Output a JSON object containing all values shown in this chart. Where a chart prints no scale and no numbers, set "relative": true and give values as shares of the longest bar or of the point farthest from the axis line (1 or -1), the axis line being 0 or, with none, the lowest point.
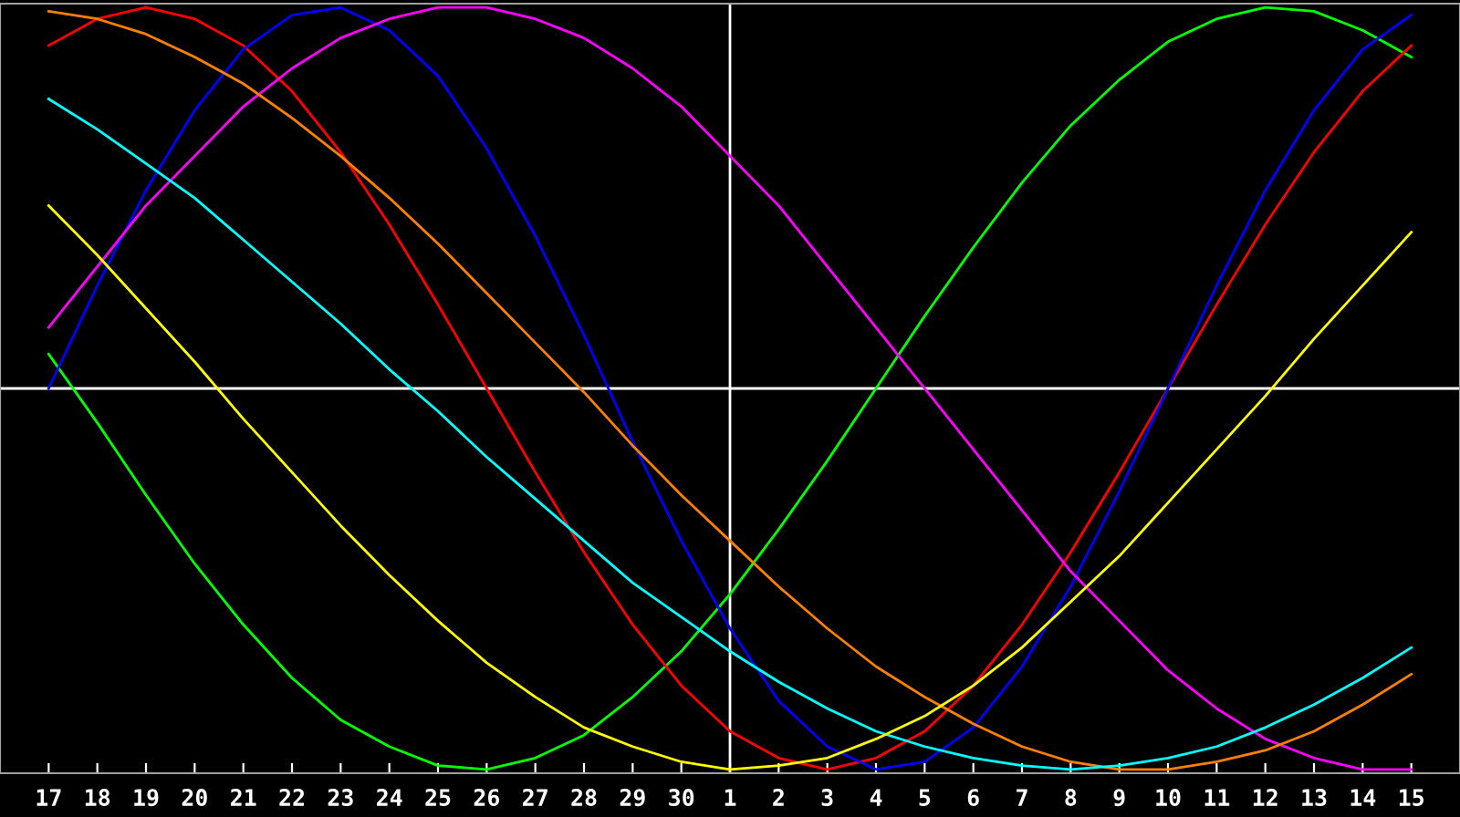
{
  "chart_data": {
    "type": "line",
    "relative": true,
    "tick_labels": "x",
    "grid": false,
    "legend": false,
    "marker": "none",
    "line_style": "solid",
    "categories": [
      "17",
      "18",
      "19",
      "20",
      "21",
      "22",
      "23",
      "24",
      "25",
      "26",
      "27",
      "28",
      "29",
      "30",
      "1",
      "2",
      "3",
      "4",
      "5",
      "6",
      "7",
      "8",
      "9",
      "10",
      "11",
      "12",
      "13",
      "14",
      "15"
    ],
    "series": [
      {
        "color": "#00ff00",
        "values": [
          0.09,
          -0.09,
          -0.28,
          -0.46,
          -0.62,
          -0.76,
          -0.87,
          -0.94,
          -0.99,
          -1.0,
          -0.97,
          -0.91,
          -0.81,
          -0.69,
          -0.54,
          -0.37,
          -0.19,
          0,
          0.19,
          0.37,
          0.54,
          0.69,
          0.81,
          0.91,
          0.97,
          1.0,
          0.99,
          0.94,
          0.87
        ]
      },
      {
        "color": "#ff0000",
        "values": [
          0.9,
          0.97,
          1.0,
          0.97,
          0.9,
          0.78,
          0.62,
          0.43,
          0.22,
          0,
          -0.22,
          -0.43,
          -0.62,
          -0.78,
          -0.9,
          -0.97,
          -1.0,
          -0.97,
          -0.9,
          -0.78,
          -0.62,
          -0.43,
          -0.22,
          0,
          0.22,
          0.43,
          0.62,
          0.78,
          0.9
        ]
      },
      {
        "color": "#0000ff",
        "values": [
          0,
          0.27,
          0.52,
          0.73,
          0.89,
          0.98,
          1.0,
          0.94,
          0.82,
          0.63,
          0.4,
          0.14,
          -0.14,
          -0.4,
          -0.63,
          -0.82,
          -0.94,
          -1.0,
          -0.98,
          -0.89,
          -0.73,
          -0.52,
          -0.27,
          0,
          0.27,
          0.52,
          0.73,
          0.89,
          0.98
        ]
      },
      {
        "color": "#ff00ff",
        "values": [
          0.16,
          0.32,
          0.48,
          0.61,
          0.74,
          0.84,
          0.92,
          0.97,
          1.0,
          1.0,
          0.97,
          0.92,
          0.84,
          0.74,
          0.61,
          0.48,
          0.32,
          0.16,
          0,
          -0.16,
          -0.32,
          -0.48,
          -0.61,
          -0.74,
          -0.84,
          -0.92,
          -0.97,
          -1.0,
          -1.0
        ]
      },
      {
        "color": "#ff8000",
        "values": [
          0.99,
          0.97,
          0.93,
          0.87,
          0.8,
          0.71,
          0.61,
          0.5,
          0.38,
          0.25,
          0.12,
          -0.01,
          -0.15,
          -0.28,
          -0.4,
          -0.52,
          -0.63,
          -0.73,
          -0.81,
          -0.88,
          -0.94,
          -0.98,
          -1.0,
          -1.0,
          -0.98,
          -0.95,
          -0.9,
          -0.83,
          -0.75
        ]
      },
      {
        "color": "#00ffff",
        "values": [
          0.76,
          0.68,
          0.59,
          0.5,
          0.39,
          0.28,
          0.17,
          0.05,
          -0.06,
          -0.18,
          -0.29,
          -0.4,
          -0.51,
          -0.6,
          -0.69,
          -0.77,
          -0.84,
          -0.9,
          -0.94,
          -0.97,
          -0.99,
          -1.0,
          -0.99,
          -0.97,
          -0.94,
          -0.89,
          -0.83,
          -0.76,
          -0.68
        ]
      },
      {
        "color": "#ffff00",
        "values": [
          0.48,
          0.35,
          0.21,
          0.07,
          -0.08,
          -0.22,
          -0.36,
          -0.49,
          -0.61,
          -0.72,
          -0.81,
          -0.89,
          -0.94,
          -0.98,
          -1.0,
          -0.99,
          -0.97,
          -0.92,
          -0.86,
          -0.78,
          -0.68,
          -0.56,
          -0.44,
          -0.3,
          -0.16,
          -0.02,
          0.13,
          0.27,
          0.41
        ]
      }
    ],
    "ref_lines": [
      {
        "axis": "y",
        "value": 0,
        "color": "#ffffff"
      },
      {
        "axis": "x",
        "value": "1",
        "color": "#ffffff"
      }
    ]
  }
}
